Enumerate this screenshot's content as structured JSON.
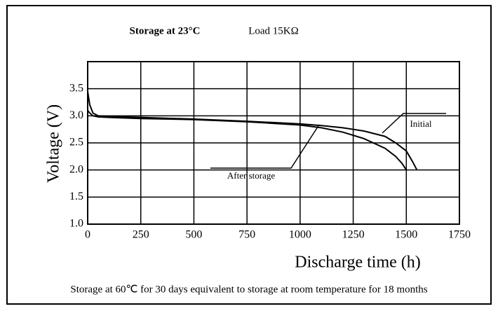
{
  "chart_data": {
    "type": "line",
    "title": "Storage at 23°C",
    "subtitle": "Load  15KΩ",
    "x_label": "Discharge time (h)",
    "y_label": "Voltage (V)",
    "footnote": "Storage at 60℃ for 30 days equivalent to storage at room temperature for 18 months",
    "annotations": [
      "Initial",
      "After storage"
    ],
    "xlim": [
      0,
      1750
    ],
    "xticks": [
      0,
      250,
      500,
      750,
      1000,
      1250,
      1500,
      1750
    ],
    "ylim": [
      1.0,
      4.0
    ],
    "yticks": [
      {
        "value": 1.0,
        "label": "1.0"
      },
      1.5,
      {
        "value": 2.0,
        "label": "2.0"
      },
      2.5,
      {
        "value": 3.0,
        "label": "3.0"
      },
      3.5
    ],
    "grid": true,
    "series": [
      {
        "name": "Initial",
        "color": "#000000",
        "x": [
          0,
          10,
          25,
          50,
          100,
          250,
          500,
          750,
          1000,
          1100,
          1200,
          1300,
          1400,
          1450,
          1500,
          1530,
          1550
        ],
        "values": [
          3.45,
          3.2,
          3.05,
          3.0,
          2.99,
          2.97,
          2.94,
          2.9,
          2.85,
          2.82,
          2.78,
          2.72,
          2.62,
          2.5,
          2.35,
          2.15,
          2.0
        ]
      },
      {
        "name": "After storage",
        "color": "#000000",
        "x": [
          0,
          10,
          25,
          50,
          100,
          250,
          500,
          750,
          1000,
          1100,
          1200,
          1300,
          1400,
          1450,
          1480,
          1500
        ],
        "values": [
          3.1,
          3.05,
          3.0,
          2.98,
          2.97,
          2.95,
          2.93,
          2.89,
          2.83,
          2.78,
          2.7,
          2.58,
          2.4,
          2.25,
          2.12,
          2.0
        ]
      }
    ]
  }
}
